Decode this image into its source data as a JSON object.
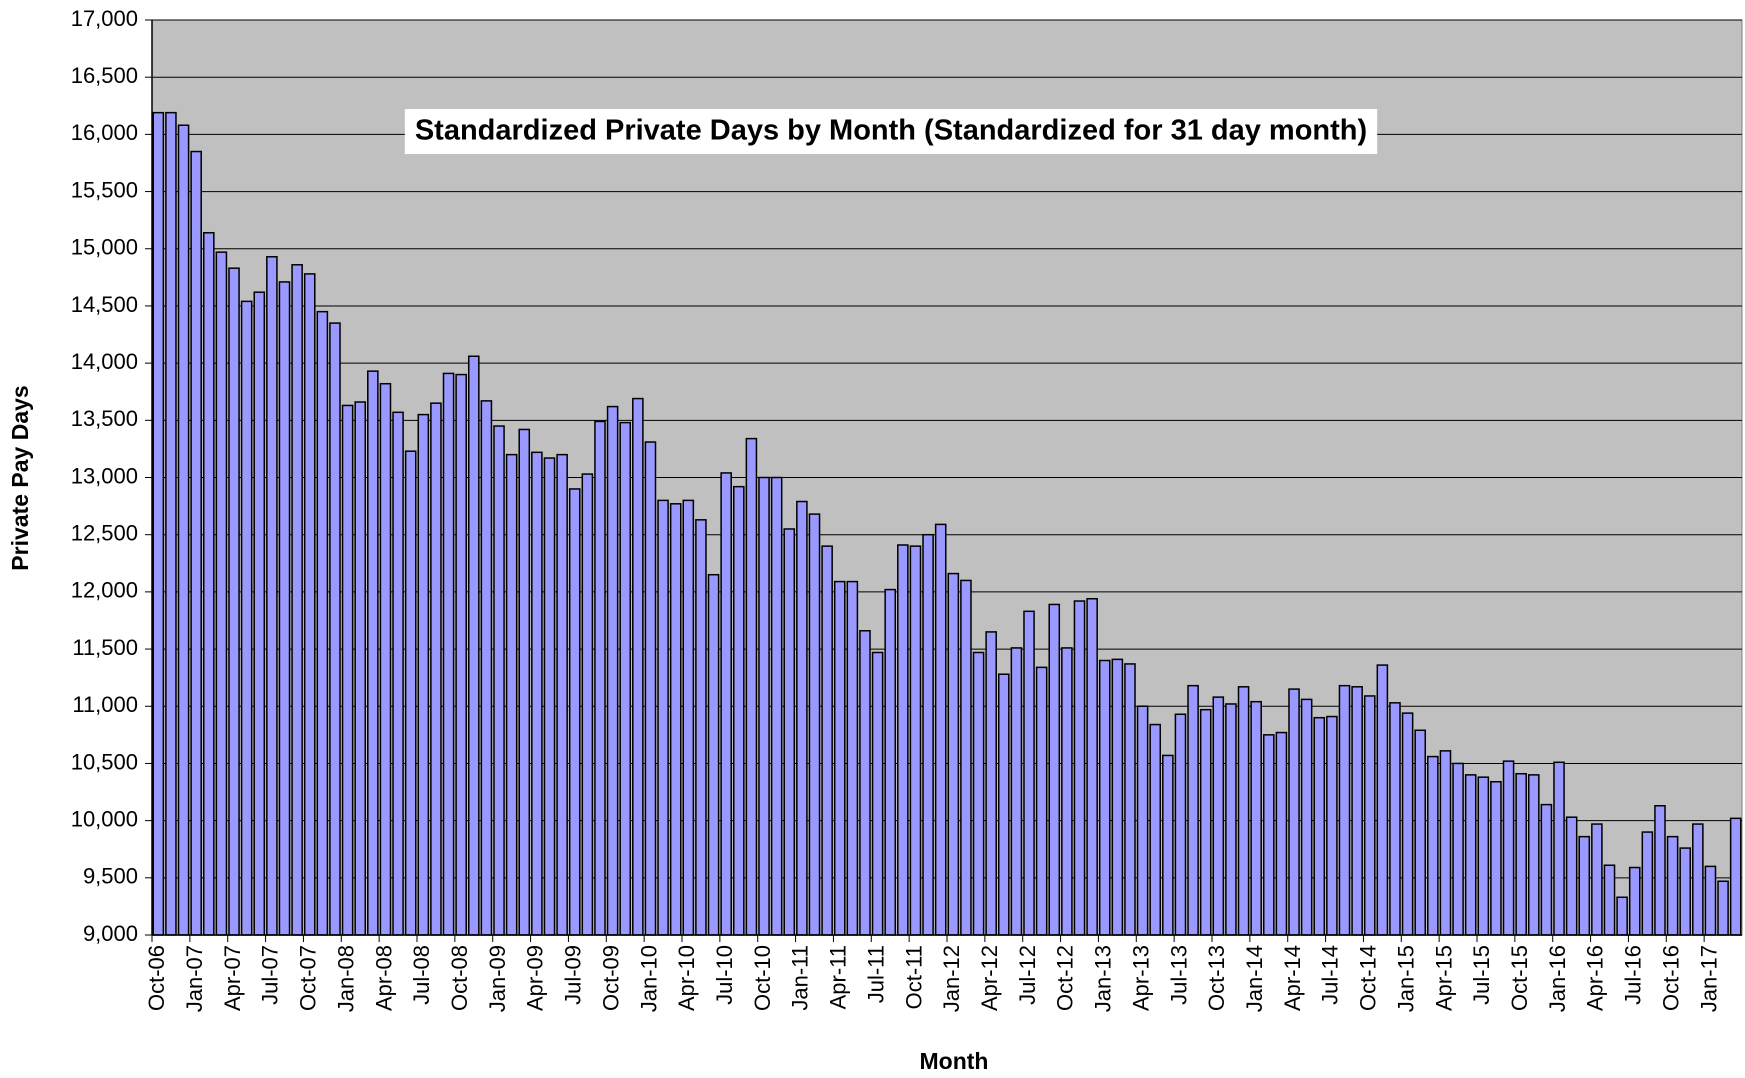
{
  "chart_data": {
    "type": "bar",
    "title": "Standardized Private Days by Month (Standardized for 31 day month)",
    "x_label": "Month",
    "y_label": "Private Pay Days",
    "categories": [
      "Oct-06",
      null,
      null,
      "Jan-07",
      null,
      null,
      "Apr-07",
      null,
      null,
      "Jul-07",
      null,
      null,
      "Oct-07",
      null,
      null,
      "Jan-08",
      null,
      null,
      "Apr-08",
      null,
      null,
      "Jul-08",
      null,
      null,
      "Oct-08",
      null,
      null,
      "Jan-09",
      null,
      null,
      "Apr-09",
      null,
      null,
      "Jul-09",
      null,
      null,
      "Oct-09",
      null,
      null,
      "Jan-10",
      null,
      null,
      "Apr-10",
      null,
      null,
      "Jul-10",
      null,
      null,
      "Oct-10",
      null,
      null,
      "Jan-11",
      null,
      null,
      "Apr-11",
      null,
      null,
      "Jul-11",
      null,
      null,
      "Oct-11",
      null,
      null,
      "Jan-12",
      null,
      null,
      "Apr-12",
      null,
      null,
      "Jul-12",
      null,
      null,
      "Oct-12",
      null,
      null,
      "Jan-13",
      null,
      null,
      "Apr-13",
      null,
      null,
      "Jul-13",
      null,
      null,
      "Oct-13",
      null,
      null,
      "Jan-14",
      null,
      null,
      "Apr-14",
      null,
      null,
      "Jul-14",
      null,
      null,
      "Oct-14",
      null,
      null,
      "Jan-15",
      null,
      null,
      "Apr-15",
      null,
      null,
      "Jul-15",
      null,
      null,
      "Oct-15",
      null,
      null,
      "Jan-16",
      null,
      null,
      "Apr-16",
      null,
      null,
      "Jul-16",
      null,
      null,
      "Oct-16",
      null,
      null,
      "Jan-17",
      null,
      null
    ],
    "values": [
      16190,
      16190,
      16080,
      15850,
      15140,
      14970,
      14830,
      14540,
      14620,
      14930,
      14710,
      14860,
      14780,
      14450,
      14350,
      13630,
      13660,
      13930,
      13820,
      13570,
      13230,
      13550,
      13650,
      13910,
      13900,
      14060,
      13670,
      13450,
      13200,
      13420,
      13220,
      13170,
      13200,
      12900,
      13030,
      13490,
      13620,
      13480,
      13690,
      13310,
      12800,
      12770,
      12800,
      12630,
      12150,
      13040,
      12920,
      13340,
      13000,
      13000,
      12550,
      12790,
      12680,
      12400,
      12090,
      12090,
      11660,
      11470,
      12020,
      12410,
      12400,
      12500,
      12590,
      12160,
      12100,
      11470,
      11650,
      11280,
      11510,
      11830,
      11340,
      11890,
      11510,
      11920,
      11940,
      11400,
      11410,
      11370,
      11000,
      10840,
      10570,
      10930,
      11180,
      10970,
      11080,
      11020,
      11170,
      11040,
      10750,
      10770,
      11150,
      11060,
      10900,
      10910,
      11180,
      11170,
      11090,
      11360,
      11030,
      10940,
      10790,
      10560,
      10610,
      10500,
      10400,
      10380,
      10340,
      10520,
      10410,
      10400,
      10140,
      10510,
      10030,
      9860,
      9970,
      9610,
      9330,
      9590,
      9900,
      10130,
      9860,
      9760,
      9970,
      9600,
      9470,
      10020
    ],
    "color": "#9999ff",
    "background": "#c0c0c0",
    "grid": true,
    "ylim": [
      9000,
      17000
    ],
    "yticks": [
      {
        "value": 9000,
        "label": "9,000"
      },
      {
        "value": 9500,
        "label": "9,500"
      },
      {
        "value": 10000,
        "label": "10,000"
      },
      {
        "value": 10500,
        "label": "10,500"
      },
      {
        "value": 11000,
        "label": "11,000"
      },
      {
        "value": 11500,
        "label": "11,500"
      },
      {
        "value": 12000,
        "label": "12,000"
      },
      {
        "value": 12500,
        "label": "12,500"
      },
      {
        "value": 13000,
        "label": "13,000"
      },
      {
        "value": 13500,
        "label": "13,500"
      },
      {
        "value": 14000,
        "label": "14,000"
      },
      {
        "value": 14500,
        "label": "14,500"
      },
      {
        "value": 15000,
        "label": "15,000"
      },
      {
        "value": 15500,
        "label": "15,500"
      },
      {
        "value": 16000,
        "label": "16,000"
      },
      {
        "value": 16500,
        "label": "16,500"
      },
      {
        "value": 17000,
        "label": "17,000"
      }
    ]
  }
}
